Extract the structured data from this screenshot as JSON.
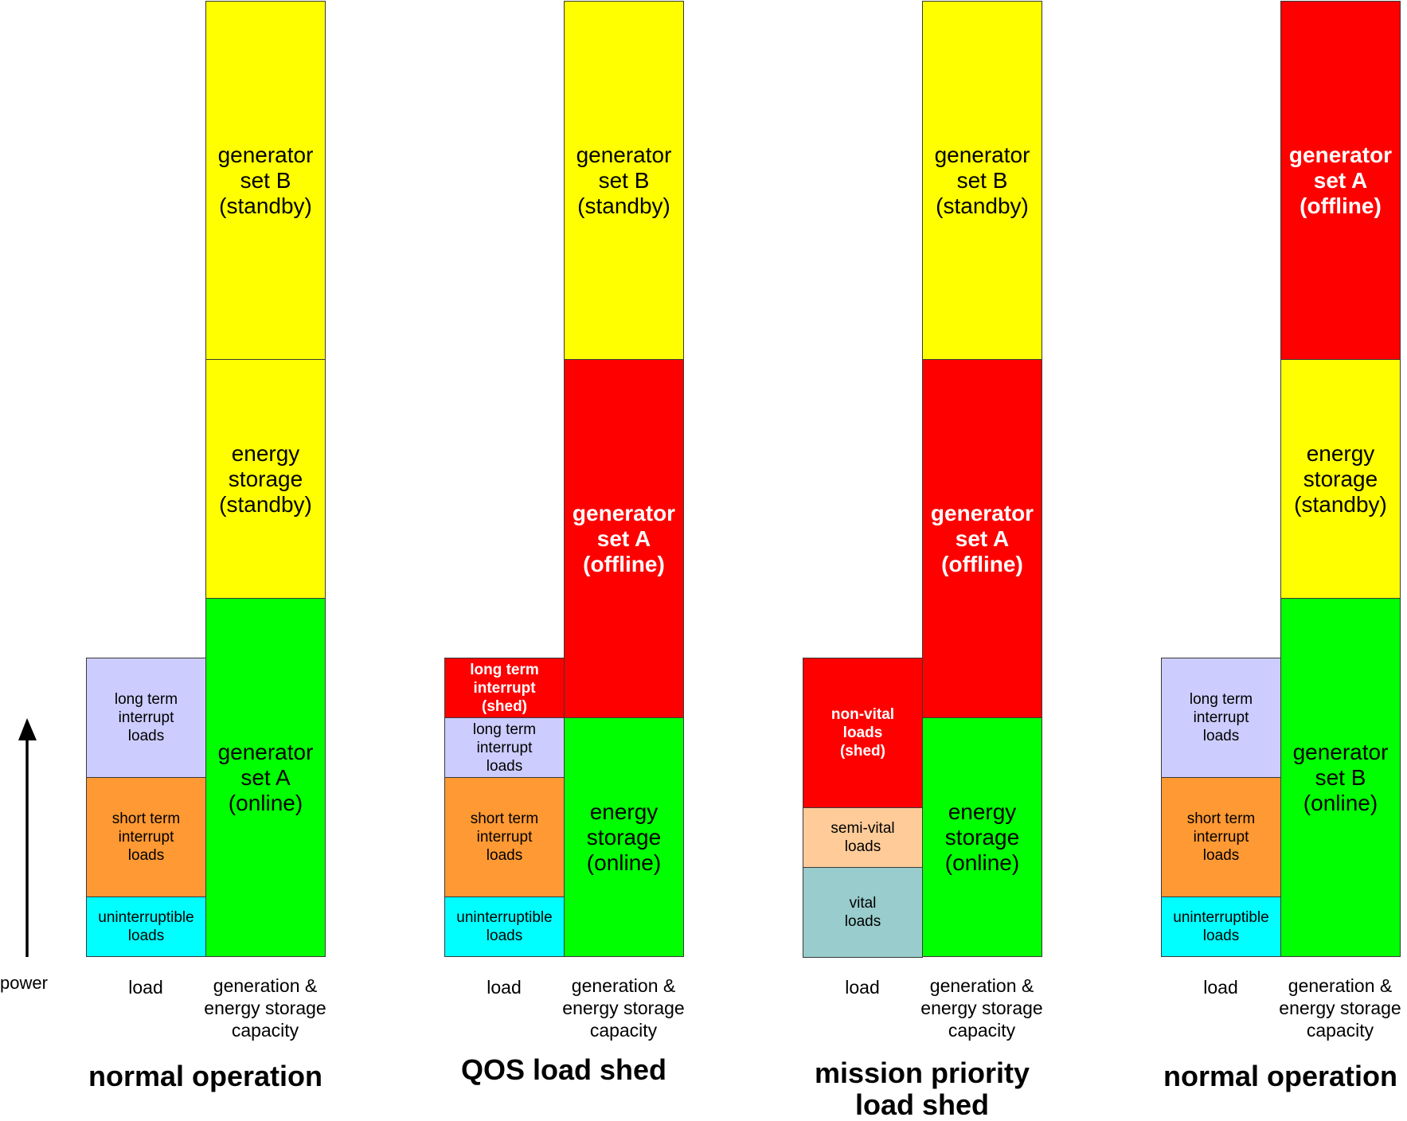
{
  "axis": {
    "label": "power",
    "icon": "up-arrow-icon"
  },
  "colors": {
    "green": "#00FF00",
    "yellow": "#FFFF00",
    "red": "#FF0000",
    "lavender": "#CCCCFF",
    "orange": "#FF9933",
    "cyan": "#00FFFF",
    "peach": "#FFCC99",
    "teal": "#99CCCC"
  },
  "panels": [
    {
      "title": "normal operation",
      "load_label": "load",
      "gen_label": "generation &\nenergy storage\ncapacity",
      "load": [
        {
          "label": "uninterruptible\nloads",
          "units": 2,
          "color": "cyan",
          "bold": false
        },
        {
          "label": "short term\ninterrupt\nloads",
          "units": 4,
          "color": "orange",
          "bold": false
        },
        {
          "label": "long term\ninterrupt\nloads",
          "units": 4,
          "color": "lavender",
          "bold": false
        }
      ],
      "gen": [
        {
          "label": "generator\nset A\n(online)",
          "units": 12,
          "color": "green",
          "bold": false
        },
        {
          "label": "energy\nstorage\n(standby)",
          "units": 8,
          "color": "yellow",
          "bold": false
        },
        {
          "label": "generator\nset B\n(standby)",
          "units": 12,
          "color": "yellow",
          "bold": false
        }
      ]
    },
    {
      "title": "QOS load shed",
      "load_label": "load",
      "gen_label": "generation &\nenergy storage\ncapacity",
      "load": [
        {
          "label": "uninterruptible\nloads",
          "units": 2,
          "color": "cyan",
          "bold": false
        },
        {
          "label": "short term\ninterrupt\nloads",
          "units": 4,
          "color": "orange",
          "bold": false
        },
        {
          "label": "long term\ninterrupt\nloads",
          "units": 2,
          "color": "lavender",
          "bold": false
        },
        {
          "label": "long term\ninterrupt\n(shed)",
          "units": 2,
          "color": "red",
          "bold": true
        }
      ],
      "gen": [
        {
          "label": "energy\nstorage\n(online)",
          "units": 8,
          "color": "green",
          "bold": false
        },
        {
          "label": "generator\nset A\n(offline)",
          "units": 12,
          "color": "red",
          "bold": true
        },
        {
          "label": "generator\nset B\n(standby)",
          "units": 12,
          "color": "yellow",
          "bold": false
        }
      ]
    },
    {
      "title": "mission priority\nload shed",
      "load_label": "load",
      "gen_label": "generation &\nenergy storage\ncapacity",
      "load": [
        {
          "label": "vital\nloads",
          "units": 3,
          "color": "teal",
          "bold": false
        },
        {
          "label": "semi-vital\nloads",
          "units": 2,
          "color": "peach",
          "bold": false
        },
        {
          "label": "non-vital\nloads\n(shed)",
          "units": 5,
          "color": "red",
          "bold": true
        }
      ],
      "gen": [
        {
          "label": "energy\nstorage\n(online)",
          "units": 8,
          "color": "green",
          "bold": false
        },
        {
          "label": "generator\nset A\n(offline)",
          "units": 12,
          "color": "red",
          "bold": true
        },
        {
          "label": "generator\nset B\n(standby)",
          "units": 12,
          "color": "yellow",
          "bold": false
        }
      ]
    },
    {
      "title": "normal operation",
      "load_label": "load",
      "gen_label": "generation &\nenergy storage\ncapacity",
      "load": [
        {
          "label": "uninterruptible\nloads",
          "units": 2,
          "color": "cyan",
          "bold": false
        },
        {
          "label": "short term\ninterrupt\nloads",
          "units": 4,
          "color": "orange",
          "bold": false
        },
        {
          "label": "long term\ninterrupt\nloads",
          "units": 4,
          "color": "lavender",
          "bold": false
        }
      ],
      "gen": [
        {
          "label": "generator\nset B\n(online)",
          "units": 12,
          "color": "green",
          "bold": false
        },
        {
          "label": "energy\nstorage\n(standby)",
          "units": 8,
          "color": "yellow",
          "bold": false
        },
        {
          "label": "generator\nset A\n(offline)",
          "units": 12,
          "color": "red",
          "bold": true
        }
      ]
    }
  ]
}
